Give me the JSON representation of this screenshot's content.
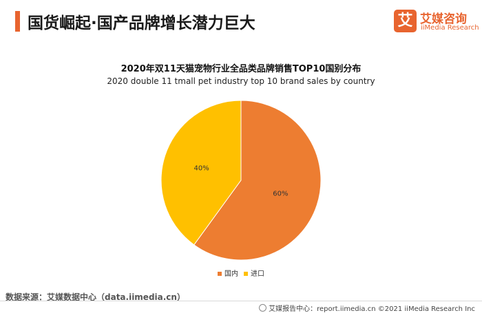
{
  "header": {
    "title": "国货崛起·国产品牌增长潜力巨大",
    "logo_cn": "艾媒咨询",
    "logo_en": "iiMedia Research",
    "logo_mark": "艾"
  },
  "chart_data": {
    "type": "pie",
    "title": "2020年双11天猫宠物行业全品类品牌销售TOP10国别分布",
    "subtitle": "2020 double 11 tmall pet industry top 10 brand sales by country",
    "categories": [
      "国内",
      "进口"
    ],
    "values": [
      60,
      40
    ],
    "labels": [
      "60%",
      "40%"
    ],
    "colors": [
      "#ed7d31",
      "#ffc000"
    ],
    "legend_position": "bottom"
  },
  "footer": {
    "source": "数据来源：艾媒数据中心（data.iimedia.cn）",
    "copyright": "艾媒报告中心：report.iimedia.cn ©2021  iiMedia Research  Inc"
  }
}
